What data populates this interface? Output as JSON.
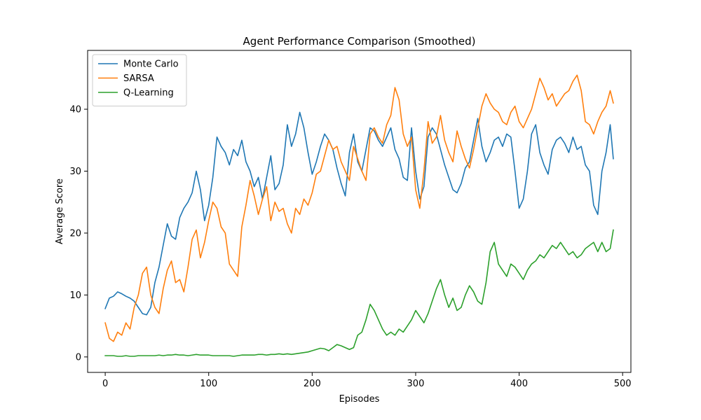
{
  "chart_data": {
    "type": "line",
    "title": "Agent Performance Comparison (Smoothed)",
    "xlabel": "Episodes",
    "ylabel": "Average Score",
    "xlim": [
      -17,
      508
    ],
    "ylim": [
      -2.5,
      49.5
    ],
    "xticks": [
      0,
      100,
      200,
      300,
      400,
      500
    ],
    "yticks": [
      0,
      10,
      20,
      30,
      40
    ],
    "grid": false,
    "legend_position": "top-left",
    "series": [
      {
        "name": "Monte Carlo",
        "color": "#1f77b4",
        "x": [
          0,
          4,
          8,
          12,
          16,
          20,
          24,
          28,
          32,
          36,
          40,
          44,
          48,
          52,
          56,
          60,
          64,
          68,
          72,
          76,
          80,
          84,
          88,
          92,
          96,
          100,
          104,
          108,
          112,
          116,
          120,
          124,
          128,
          132,
          136,
          140,
          144,
          148,
          152,
          156,
          160,
          164,
          168,
          172,
          176,
          180,
          184,
          188,
          192,
          196,
          200,
          204,
          208,
          212,
          216,
          220,
          224,
          228,
          232,
          236,
          240,
          244,
          248,
          252,
          256,
          260,
          264,
          268,
          272,
          276,
          280,
          284,
          288,
          292,
          296,
          300,
          304,
          308,
          312,
          316,
          320,
          324,
          328,
          332,
          336,
          340,
          344,
          348,
          352,
          356,
          360,
          364,
          368,
          372,
          376,
          380,
          384,
          388,
          392,
          396,
          400,
          404,
          408,
          412,
          416,
          420,
          424,
          428,
          432,
          436,
          440,
          444,
          448,
          452,
          456,
          460,
          464,
          468,
          472,
          476,
          480,
          484,
          488,
          491
        ],
        "y": [
          7.8,
          9.5,
          9.8,
          10.5,
          10.2,
          9.8,
          9.5,
          9.0,
          8.0,
          7.0,
          6.8,
          8.0,
          12.0,
          14.5,
          18.0,
          21.5,
          19.5,
          19.0,
          22.5,
          24.0,
          25.0,
          26.5,
          30.0,
          27.0,
          22.0,
          24.5,
          29.0,
          35.5,
          34.0,
          33.0,
          31.0,
          33.5,
          32.5,
          35.0,
          31.5,
          30.0,
          27.5,
          29.0,
          25.5,
          29.0,
          32.5,
          27.0,
          28.0,
          31.0,
          37.5,
          34.0,
          36.0,
          39.5,
          37.0,
          33.0,
          29.5,
          31.5,
          34.0,
          36.0,
          35.0,
          33.5,
          30.5,
          28.0,
          26.0,
          33.0,
          36.0,
          31.5,
          30.0,
          33.5,
          37.0,
          36.5,
          35.0,
          34.0,
          35.5,
          37.0,
          33.5,
          32.0,
          29.0,
          28.5,
          37.0,
          30.0,
          25.5,
          27.5,
          35.5,
          37.0,
          36.0,
          33.5,
          31.0,
          29.0,
          27.0,
          26.5,
          28.0,
          30.5,
          31.5,
          35.0,
          38.5,
          34.0,
          31.5,
          33.0,
          35.0,
          35.5,
          34.0,
          36.0,
          35.5,
          30.0,
          24.0,
          25.5,
          30.0,
          36.0,
          37.5,
          33.0,
          31.0,
          29.5,
          33.5,
          35.0,
          35.5,
          34.5,
          33.0,
          35.5,
          33.5,
          34.0,
          31.0,
          30.0,
          24.5,
          23.0,
          30.0,
          33.0,
          37.5,
          32.0
        ]
      },
      {
        "name": "SARSA",
        "color": "#ff7f0e",
        "x": [
          0,
          4,
          8,
          12,
          16,
          20,
          24,
          28,
          32,
          36,
          40,
          44,
          48,
          52,
          56,
          60,
          64,
          68,
          72,
          76,
          80,
          84,
          88,
          92,
          96,
          100,
          104,
          108,
          112,
          116,
          120,
          124,
          128,
          132,
          136,
          140,
          144,
          148,
          152,
          156,
          160,
          164,
          168,
          172,
          176,
          180,
          184,
          188,
          192,
          196,
          200,
          204,
          208,
          212,
          216,
          220,
          224,
          228,
          232,
          236,
          240,
          244,
          248,
          252,
          256,
          260,
          264,
          268,
          272,
          276,
          280,
          284,
          288,
          292,
          296,
          300,
          304,
          308,
          312,
          316,
          320,
          324,
          328,
          332,
          336,
          340,
          344,
          348,
          352,
          356,
          360,
          364,
          368,
          372,
          376,
          380,
          384,
          388,
          392,
          396,
          400,
          404,
          408,
          412,
          416,
          420,
          424,
          428,
          432,
          436,
          440,
          444,
          448,
          452,
          456,
          460,
          464,
          468,
          472,
          476,
          480,
          484,
          488,
          491
        ],
        "y": [
          5.5,
          3.0,
          2.5,
          4.0,
          3.5,
          5.5,
          4.5,
          8.0,
          10.0,
          13.5,
          14.5,
          10.0,
          8.0,
          7.0,
          11.0,
          14.0,
          15.5,
          12.0,
          12.5,
          10.5,
          14.5,
          19.0,
          20.5,
          16.0,
          18.5,
          22.0,
          25.0,
          24.0,
          21.0,
          20.0,
          15.0,
          14.0,
          13.0,
          21.0,
          24.5,
          28.5,
          26.0,
          23.0,
          25.5,
          27.5,
          22.0,
          25.0,
          23.5,
          24.0,
          21.5,
          20.0,
          24.0,
          23.0,
          25.5,
          24.5,
          26.5,
          29.5,
          30.0,
          32.5,
          35.0,
          33.5,
          34.0,
          31.5,
          30.0,
          28.5,
          34.0,
          32.0,
          30.0,
          28.5,
          36.0,
          37.0,
          35.5,
          34.5,
          37.5,
          39.0,
          43.5,
          41.5,
          36.0,
          34.0,
          35.5,
          27.0,
          24.0,
          30.0,
          38.0,
          34.5,
          35.5,
          39.0,
          35.0,
          33.0,
          31.5,
          36.5,
          34.0,
          32.0,
          30.5,
          33.5,
          37.0,
          40.5,
          42.5,
          41.0,
          40.0,
          39.5,
          38.0,
          37.5,
          39.5,
          40.5,
          38.0,
          37.0,
          38.5,
          40.0,
          42.5,
          45.0,
          43.5,
          41.5,
          42.5,
          40.5,
          41.5,
          42.5,
          43.0,
          44.5,
          45.5,
          43.0,
          38.0,
          37.5,
          36.0,
          38.0,
          39.5,
          40.5,
          43.0,
          41.0
        ]
      },
      {
        "name": "Q-Learning",
        "color": "#2ca02c",
        "x": [
          0,
          4,
          8,
          12,
          16,
          20,
          24,
          28,
          32,
          36,
          40,
          44,
          48,
          52,
          56,
          60,
          64,
          68,
          72,
          76,
          80,
          84,
          88,
          92,
          96,
          100,
          104,
          108,
          112,
          116,
          120,
          124,
          128,
          132,
          136,
          140,
          144,
          148,
          152,
          156,
          160,
          164,
          168,
          172,
          176,
          180,
          184,
          188,
          192,
          196,
          200,
          204,
          208,
          212,
          216,
          220,
          224,
          228,
          232,
          236,
          240,
          244,
          248,
          252,
          256,
          260,
          264,
          268,
          272,
          276,
          280,
          284,
          288,
          292,
          296,
          300,
          304,
          308,
          312,
          316,
          320,
          324,
          328,
          332,
          336,
          340,
          344,
          348,
          352,
          356,
          360,
          364,
          368,
          372,
          376,
          380,
          384,
          388,
          392,
          396,
          400,
          404,
          408,
          412,
          416,
          420,
          424,
          428,
          432,
          436,
          440,
          444,
          448,
          452,
          456,
          460,
          464,
          468,
          472,
          476,
          480,
          484,
          488,
          491
        ],
        "y": [
          0.2,
          0.2,
          0.2,
          0.1,
          0.1,
          0.2,
          0.1,
          0.1,
          0.2,
          0.2,
          0.2,
          0.2,
          0.2,
          0.3,
          0.2,
          0.3,
          0.3,
          0.4,
          0.3,
          0.3,
          0.2,
          0.3,
          0.4,
          0.3,
          0.3,
          0.3,
          0.2,
          0.2,
          0.2,
          0.2,
          0.2,
          0.1,
          0.2,
          0.3,
          0.3,
          0.3,
          0.3,
          0.4,
          0.4,
          0.3,
          0.4,
          0.4,
          0.5,
          0.4,
          0.5,
          0.4,
          0.5,
          0.6,
          0.7,
          0.8,
          1.0,
          1.2,
          1.4,
          1.3,
          1.0,
          1.5,
          2.0,
          1.8,
          1.5,
          1.2,
          1.5,
          3.5,
          4.0,
          6.0,
          8.5,
          7.5,
          6.0,
          4.5,
          3.5,
          4.0,
          3.5,
          4.5,
          4.0,
          5.0,
          6.0,
          7.5,
          6.5,
          5.5,
          7.0,
          9.0,
          11.0,
          12.5,
          10.0,
          8.0,
          9.5,
          7.5,
          8.0,
          10.0,
          11.5,
          10.5,
          9.0,
          8.5,
          12.0,
          17.0,
          18.5,
          15.0,
          14.0,
          13.0,
          15.0,
          14.5,
          13.5,
          12.5,
          14.0,
          15.0,
          15.5,
          16.5,
          16.0,
          17.0,
          18.0,
          17.5,
          18.5,
          17.5,
          16.5,
          17.0,
          16.0,
          16.5,
          17.5,
          18.0,
          18.5,
          17.0,
          18.5,
          17.0,
          17.5,
          20.5
        ]
      }
    ]
  }
}
